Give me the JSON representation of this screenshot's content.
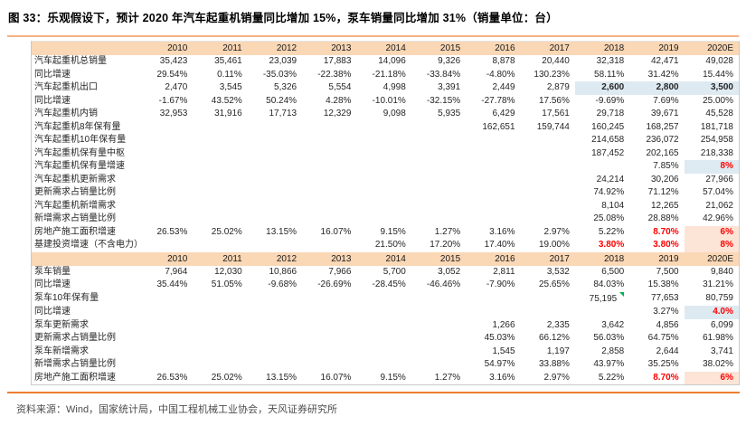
{
  "title": "图 33：乐观假设下，预计 2020 年汽车起重机销量同比增加 15%，泵车销量同比增加 31%（销量单位：台）",
  "source": "资料来源：Wind，国家统计局，中国工程机械工业协会，天风证券研究所",
  "years": [
    "2010",
    "2011",
    "2012",
    "2013",
    "2014",
    "2015",
    "2016",
    "2017",
    "2018",
    "2019",
    "2020E"
  ],
  "colors": {
    "accent_rule_top": "#F4B183",
    "accent_rule_bottom": "#ED7D31",
    "header_bg": "#FAD7B5",
    "highlight_blue": "#DEEAF1",
    "highlight_peach": "#FCE4D6",
    "emphasis_red": "#FF0000",
    "flag_green": "#00B050",
    "border_gray": "#C9C9C9",
    "text_dark": "#262626"
  },
  "tables": [
    {
      "id": "crane",
      "rows": [
        {
          "label": "汽车起重机总销量",
          "values": [
            "35,423",
            "35,461",
            "23,039",
            "17,883",
            "14,096",
            "9,326",
            "8,878",
            "20,440",
            "32,318",
            "42,471",
            "49,028"
          ]
        },
        {
          "label": "同比增速",
          "values": [
            "29.54%",
            "0.11%",
            "-35.03%",
            "-22.38%",
            "-21.18%",
            "-33.84%",
            "-4.80%",
            "130.23%",
            "58.11%",
            "31.42%",
            "15.44%"
          ]
        },
        {
          "label": "汽车起重机出口",
          "values": [
            "2,470",
            "3,545",
            "5,326",
            "5,554",
            "4,998",
            "3,391",
            "2,449",
            "2,879",
            "2,600",
            "2,800",
            "3,500"
          ],
          "styles": {
            "8": "hl-blue",
            "9": "hl-blue",
            "10": "hl-blue"
          }
        },
        {
          "label": "同比增速",
          "values": [
            "-1.67%",
            "43.52%",
            "50.24%",
            "4.28%",
            "-10.01%",
            "-32.15%",
            "-27.78%",
            "17.56%",
            "-9.69%",
            "7.69%",
            "25.00%"
          ]
        },
        {
          "label": "汽车起重机内销",
          "values": [
            "32,953",
            "31,916",
            "17,713",
            "12,329",
            "9,098",
            "5,935",
            "6,429",
            "17,561",
            "29,718",
            "39,671",
            "45,528"
          ]
        },
        {
          "label": "汽车起重机8年保有量",
          "values": [
            "",
            "",
            "",
            "",
            "",
            "",
            "162,651",
            "159,744",
            "160,245",
            "168,257",
            "181,718"
          ]
        },
        {
          "label": "汽车起重机10年保有量",
          "values": [
            "",
            "",
            "",
            "",
            "",
            "",
            "",
            "",
            "214,658",
            "236,072",
            "254,958"
          ]
        },
        {
          "label": "汽车起重机保有量中枢",
          "values": [
            "",
            "",
            "",
            "",
            "",
            "",
            "",
            "",
            "187,452",
            "202,165",
            "218,338"
          ]
        },
        {
          "label": "汽车起重机保有量增速",
          "values": [
            "",
            "",
            "",
            "",
            "",
            "",
            "",
            "",
            "",
            "7.85%",
            "8%"
          ],
          "styles": {
            "10": "red-blue"
          }
        },
        {
          "label": "汽车起重机更新需求",
          "values": [
            "",
            "",
            "",
            "",
            "",
            "",
            "",
            "",
            "24,214",
            "30,206",
            "27,966"
          ]
        },
        {
          "label": "更新需求占销量比例",
          "values": [
            "",
            "",
            "",
            "",
            "",
            "",
            "",
            "",
            "74.92%",
            "71.12%",
            "57.04%"
          ]
        },
        {
          "label": "汽车起重机新增需求",
          "values": [
            "",
            "",
            "",
            "",
            "",
            "",
            "",
            "",
            "8,104",
            "12,265",
            "21,062"
          ]
        },
        {
          "label": "新增需求占销量比例",
          "values": [
            "",
            "",
            "",
            "",
            "",
            "",
            "",
            "",
            "25.08%",
            "28.88%",
            "42.96%"
          ]
        },
        {
          "label": "房地产施工面积增速",
          "values": [
            "26.53%",
            "25.02%",
            "13.15%",
            "16.07%",
            "9.15%",
            "1.27%",
            "3.16%",
            "2.97%",
            "5.22%",
            "8.70%",
            "6%"
          ],
          "styles": {
            "9": "red",
            "10": "red-peach"
          }
        },
        {
          "label": "基建投资增速（不含电力）",
          "values": [
            "",
            "",
            "",
            "",
            "21.50%",
            "17.20%",
            "17.40%",
            "19.00%",
            "3.80%",
            "3.80%",
            "8%"
          ],
          "styles": {
            "8": "red",
            "9": "red",
            "10": "red-peach"
          }
        }
      ]
    },
    {
      "id": "pump",
      "rows": [
        {
          "label": "泵车销量",
          "values": [
            "7,964",
            "12,030",
            "10,866",
            "7,966",
            "5,700",
            "3,052",
            "2,811",
            "3,532",
            "6,500",
            "7,500",
            "9,840"
          ]
        },
        {
          "label": "同比增速",
          "values": [
            "35.44%",
            "51.05%",
            "-9.68%",
            "-26.69%",
            "-28.45%",
            "-46.46%",
            "-7.90%",
            "25.65%",
            "84.03%",
            "15.38%",
            "31.21%"
          ]
        },
        {
          "label": "泵车10年保有量",
          "values": [
            "",
            "",
            "",
            "",
            "",
            "",
            "",
            "",
            "75,195",
            "77,653",
            "80,759"
          ],
          "flags": {
            "8": true
          }
        },
        {
          "label": "同比增速",
          "values": [
            "",
            "",
            "",
            "",
            "",
            "",
            "",
            "",
            "",
            "3.27%",
            "4.0%"
          ],
          "styles": {
            "10": "red-blue"
          }
        },
        {
          "label": "泵车更新需求",
          "values": [
            "",
            "",
            "",
            "",
            "",
            "",
            "1,266",
            "2,335",
            "3,642",
            "4,856",
            "6,099"
          ]
        },
        {
          "label": "更新需求占销量比例",
          "values": [
            "",
            "",
            "",
            "",
            "",
            "",
            "45.03%",
            "66.12%",
            "56.03%",
            "64.75%",
            "61.98%"
          ]
        },
        {
          "label": "泵车新增需求",
          "values": [
            "",
            "",
            "",
            "",
            "",
            "",
            "1,545",
            "1,197",
            "2,858",
            "2,644",
            "3,741"
          ]
        },
        {
          "label": "新增需求占销量比例",
          "values": [
            "",
            "",
            "",
            "",
            "",
            "",
            "54.97%",
            "33.88%",
            "43.97%",
            "35.25%",
            "38.02%"
          ]
        },
        {
          "label": "房地产施工面积增速",
          "values": [
            "26.53%",
            "25.02%",
            "13.15%",
            "16.07%",
            "9.15%",
            "1.27%",
            "3.16%",
            "2.97%",
            "5.22%",
            "8.70%",
            "6%"
          ],
          "styles": {
            "9": "red",
            "10": "red-peach"
          }
        }
      ]
    }
  ]
}
